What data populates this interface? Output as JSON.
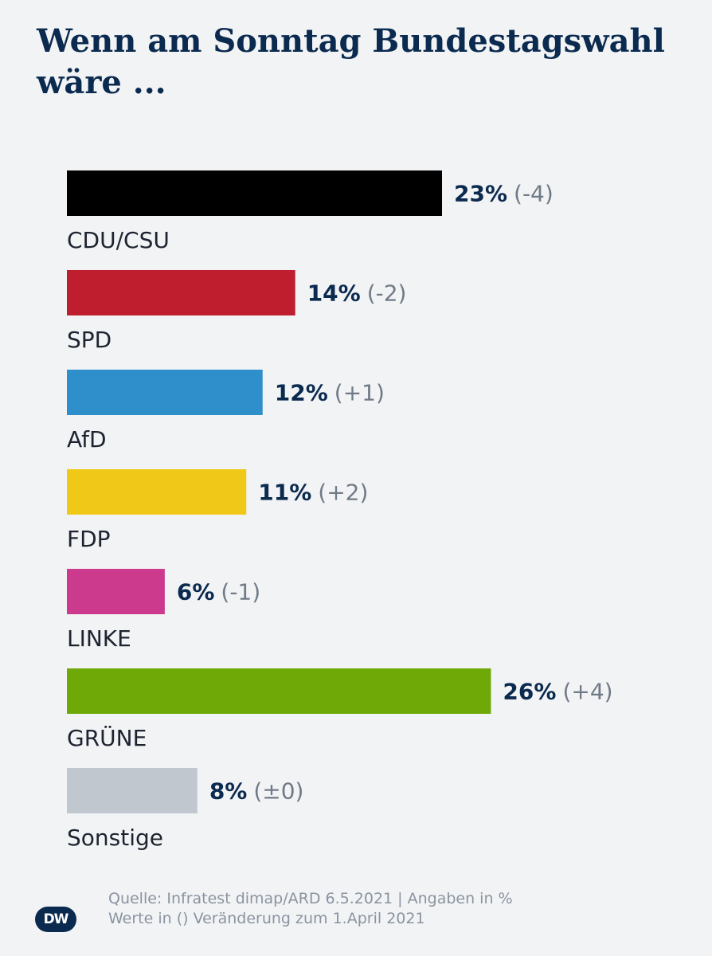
{
  "title": "Wenn am Sonntag Bundestagswahl wäre ...",
  "footer": {
    "line1": "Quelle: Infratest dimap/ARD 6.5.2021 | Angaben in %",
    "line2": "Werte in () Veränderung zum 1.April 2021"
  },
  "logo_text": "DW",
  "chart_data": {
    "type": "bar",
    "orientation": "horizontal",
    "categories": [
      "CDU/CSU",
      "SPD",
      "AfD",
      "FDP",
      "LINKE",
      "GRÜNE",
      "Sonstige"
    ],
    "values": [
      23,
      14,
      12,
      11,
      6,
      26,
      8
    ],
    "value_labels": [
      "23%",
      "14%",
      "12%",
      "11%",
      "6%",
      "26%",
      "8%"
    ],
    "change_labels": [
      "(-4)",
      "(-2)",
      "(+1)",
      "(+2)",
      "(-1)",
      "(+4)",
      "(±0)"
    ],
    "changes": [
      -4,
      -2,
      1,
      2,
      -1,
      4,
      0
    ],
    "colors": [
      "#000000",
      "#be1e2d",
      "#2e8fca",
      "#f0c818",
      "#cc3a8e",
      "#6ea908",
      "#c0c7ce"
    ],
    "unit": "%",
    "grid": false,
    "legend": "none"
  }
}
